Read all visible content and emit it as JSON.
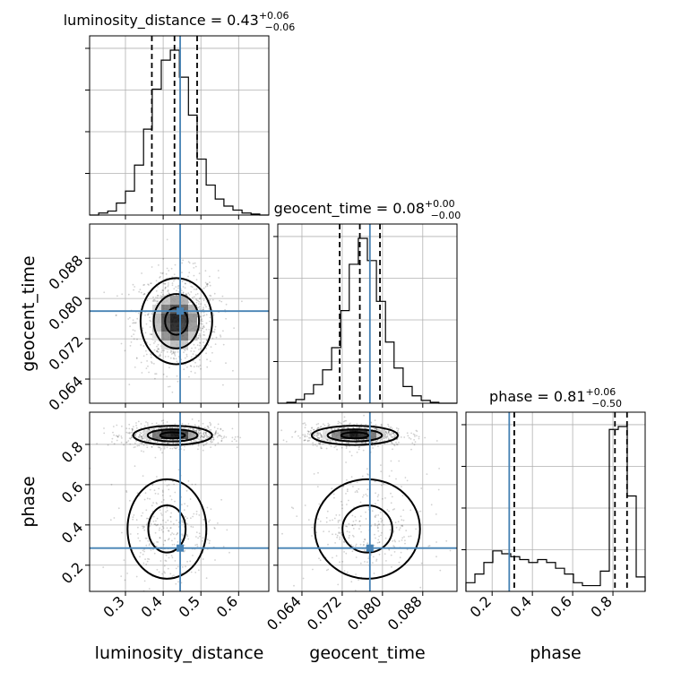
{
  "chart_data": {
    "type": "corner",
    "parameters": [
      "luminosity_distance",
      "geocent_time",
      "phase"
    ],
    "axis_labels": [
      "luminosity_distance",
      "geocent_time",
      "phase"
    ],
    "titles": [
      {
        "param": "luminosity_distance",
        "median": "0.43",
        "plus": "+0.06",
        "minus": "−0.06"
      },
      {
        "param": "geocent_time",
        "median": "0.08",
        "plus": "+0.00",
        "minus": "−0.00"
      },
      {
        "param": "phase",
        "median": "0.81",
        "plus": "+0.06",
        "minus": "−0.50"
      }
    ],
    "ranges": [
      [
        0.205,
        0.68
      ],
      [
        0.0592,
        0.0948
      ],
      [
        0.07,
        0.96
      ]
    ],
    "ticks": [
      {
        "values": [
          0.3,
          0.4,
          0.5,
          0.6
        ],
        "labels": [
          "0.3",
          "0.4",
          "0.5",
          "0.6"
        ]
      },
      {
        "values": [
          0.064,
          0.072,
          0.08,
          0.088
        ],
        "labels": [
          "0.064",
          "0.072",
          "0.080",
          "0.088"
        ]
      },
      {
        "values": [
          0.2,
          0.4,
          0.6,
          0.8
        ],
        "labels": [
          "0.2",
          "0.4",
          "0.6",
          "0.8"
        ]
      }
    ],
    "truths": [
      0.445,
      0.0775,
      0.285
    ],
    "quantiles": [
      [
        0.37,
        0.43,
        0.49
      ],
      [
        0.0715,
        0.0755,
        0.0795
      ],
      [
        0.31,
        0.81,
        0.87
      ]
    ],
    "histograms": [
      {
        "bin_edges": [
          0.205,
          0.229,
          0.253,
          0.276,
          0.3,
          0.324,
          0.348,
          0.371,
          0.395,
          0.419,
          0.443,
          0.467,
          0.49,
          0.514,
          0.538,
          0.561,
          0.585,
          0.609,
          0.633,
          0.656,
          0.68
        ],
        "counts": [
          0,
          2,
          4,
          12,
          24,
          50,
          86,
          126,
          155,
          165,
          138,
          100,
          56,
          30,
          16,
          9,
          5,
          2,
          1,
          0
        ]
      },
      {
        "bin_edges": [
          0.0592,
          0.061,
          0.0628,
          0.0645,
          0.0663,
          0.0681,
          0.0699,
          0.0717,
          0.0734,
          0.0752,
          0.077,
          0.0788,
          0.0806,
          0.0823,
          0.0841,
          0.0859,
          0.0877,
          0.0895,
          0.0912,
          0.093,
          0.0948
        ],
        "counts": [
          0,
          1,
          4,
          10,
          20,
          36,
          60,
          100,
          150,
          178,
          154,
          110,
          66,
          38,
          18,
          8,
          3,
          1,
          0,
          0
        ]
      },
      {
        "bin_edges": [
          0.07,
          0.1145,
          0.159,
          0.2035,
          0.248,
          0.2925,
          0.337,
          0.3815,
          0.426,
          0.4705,
          0.515,
          0.5595,
          0.604,
          0.6485,
          0.693,
          0.7375,
          0.782,
          0.8265,
          0.871,
          0.9155,
          0.96
        ],
        "counts": [
          3,
          6,
          10,
          14,
          13,
          12,
          11,
          10,
          11,
          10,
          8,
          6,
          3,
          2,
          2,
          7,
          56,
          57,
          33,
          5
        ]
      }
    ],
    "density_2d": [
      {
        "x": "luminosity_distance",
        "y": "geocent_time",
        "cx": 0.435,
        "cy": 0.0755,
        "sx": 0.05,
        "sy": 0.0045
      },
      {
        "x": "luminosity_distance",
        "y": "phase",
        "lobes": [
          {
            "cx": 0.425,
            "cy": 0.845,
            "sx": 0.055,
            "sy": 0.025,
            "w": 1.0
          },
          {
            "cx": 0.41,
            "cy": 0.38,
            "sx": 0.055,
            "sy": 0.13,
            "w": 0.35
          }
        ]
      },
      {
        "x": "geocent_time",
        "y": "phase",
        "lobes": [
          {
            "cx": 0.0745,
            "cy": 0.845,
            "sx": 0.0045,
            "sy": 0.025,
            "w": 1.0
          },
          {
            "cx": 0.077,
            "cy": 0.38,
            "sx": 0.0055,
            "sy": 0.13,
            "w": 0.35
          }
        ]
      }
    ],
    "grid": true
  }
}
